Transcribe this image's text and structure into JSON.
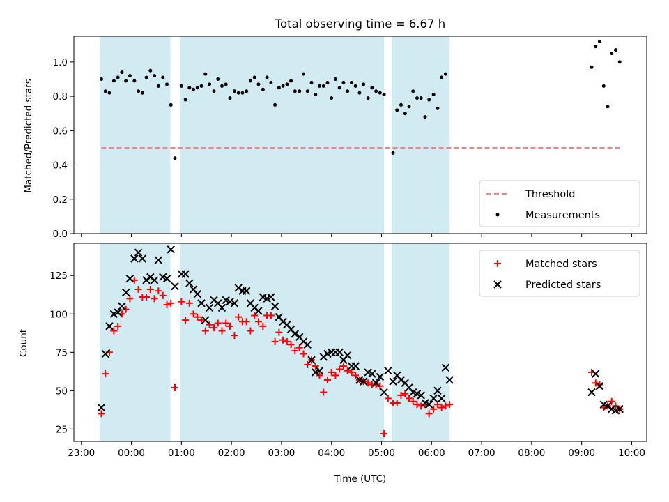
{
  "title": "Total observing time = 6.67 h",
  "chart_data": [
    {
      "type": "scatter",
      "ylabel": "Matched/Predicted stars",
      "ylim": [
        0,
        1.15
      ],
      "yticks": [
        "0.0",
        "0.2",
        "0.4",
        "0.6",
        "0.8",
        "1.0"
      ],
      "yticks_values": [
        0,
        0.2,
        0.4,
        0.6,
        0.8,
        1.0
      ],
      "threshold": {
        "value": 0.5,
        "x_start": 23.4,
        "x_end": 33.8,
        "color": "#ff7f7f"
      },
      "legend": {
        "placement": "bottom-right",
        "entries": [
          "Threshold",
          "Measurements"
        ]
      },
      "series": [
        {
          "name": "Measurements",
          "color": "#000000",
          "x": [
            23.4,
            23.48,
            23.56,
            23.65,
            23.73,
            23.81,
            23.89,
            23.97,
            24.06,
            24.14,
            24.22,
            24.3,
            24.38,
            24.46,
            24.54,
            24.63,
            24.71,
            24.79,
            24.87,
            25.0,
            25.08,
            25.16,
            25.24,
            25.32,
            25.4,
            25.48,
            25.56,
            25.65,
            25.73,
            25.81,
            25.89,
            25.97,
            26.06,
            26.14,
            26.22,
            26.3,
            26.38,
            26.46,
            26.54,
            26.63,
            26.71,
            26.79,
            26.87,
            26.95,
            27.03,
            27.11,
            27.19,
            27.27,
            27.36,
            27.44,
            27.52,
            27.6,
            27.68,
            27.76,
            27.84,
            27.92,
            28.0,
            28.08,
            28.16,
            28.24,
            28.32,
            28.4,
            28.48,
            28.56,
            28.64,
            28.73,
            28.81,
            28.89,
            28.97,
            29.05,
            29.23,
            29.31,
            29.39,
            29.47,
            29.55,
            29.63,
            29.71,
            29.79,
            29.87,
            29.95,
            30.04,
            30.12,
            30.2,
            30.28,
            33.2,
            33.28,
            33.36,
            33.44,
            33.52,
            33.6,
            33.68,
            33.76
          ],
          "y": [
            0.9,
            0.83,
            0.82,
            0.89,
            0.91,
            0.94,
            0.89,
            0.92,
            0.89,
            0.83,
            0.82,
            0.91,
            0.95,
            0.92,
            0.86,
            0.91,
            0.87,
            0.75,
            0.44,
            0.86,
            0.78,
            0.85,
            0.84,
            0.85,
            0.86,
            0.93,
            0.87,
            0.83,
            0.9,
            0.86,
            0.87,
            0.79,
            0.83,
            0.82,
            0.82,
            0.83,
            0.89,
            0.91,
            0.87,
            0.84,
            0.91,
            0.88,
            0.75,
            0.85,
            0.86,
            0.87,
            0.89,
            0.83,
            0.83,
            0.93,
            0.83,
            0.88,
            0.81,
            0.86,
            0.86,
            0.88,
            0.79,
            0.9,
            0.85,
            0.88,
            0.83,
            0.88,
            0.86,
            0.82,
            0.87,
            0.79,
            0.85,
            0.83,
            0.82,
            0.81,
            0.47,
            0.72,
            0.75,
            0.7,
            0.74,
            0.83,
            0.79,
            0.79,
            0.68,
            0.78,
            0.81,
            0.73,
            0.91,
            0.93,
            0.97,
            1.09,
            1.12,
            0.86,
            0.74,
            1.05,
            1.07,
            1.0
          ]
        }
      ]
    },
    {
      "type": "scatter",
      "ylabel": "Count",
      "xlabel": "Time (UTC)",
      "ylim": [
        17,
        146
      ],
      "yticks": [
        "25",
        "50",
        "75",
        "100",
        "125"
      ],
      "yticks_values": [
        25,
        50,
        75,
        100,
        125
      ],
      "legend": {
        "placement": "top-right",
        "entries": [
          "Matched stars",
          "Predicted stars"
        ]
      },
      "series": [
        {
          "name": "Matched stars",
          "marker": "plus",
          "color": "#ff0000",
          "x": [
            23.4,
            23.48,
            23.56,
            23.65,
            23.73,
            23.81,
            23.89,
            23.97,
            24.06,
            24.14,
            24.22,
            24.3,
            24.38,
            24.46,
            24.54,
            24.63,
            24.71,
            24.79,
            24.87,
            25.0,
            25.08,
            25.16,
            25.24,
            25.32,
            25.4,
            25.48,
            25.56,
            25.65,
            25.73,
            25.81,
            25.89,
            25.97,
            26.06,
            26.14,
            26.22,
            26.3,
            26.38,
            26.46,
            26.54,
            26.63,
            26.71,
            26.79,
            26.87,
            26.95,
            27.03,
            27.11,
            27.19,
            27.27,
            27.36,
            27.44,
            27.52,
            27.6,
            27.68,
            27.76,
            27.84,
            27.92,
            28.0,
            28.08,
            28.16,
            28.24,
            28.32,
            28.4,
            28.48,
            28.56,
            28.64,
            28.73,
            28.81,
            28.89,
            28.97,
            29.05,
            29.13,
            29.23,
            29.31,
            29.39,
            29.47,
            29.55,
            29.63,
            29.71,
            29.79,
            29.87,
            29.95,
            30.04,
            30.12,
            30.2,
            30.28,
            30.36,
            33.2,
            33.28,
            33.36,
            33.44,
            33.52,
            33.6,
            33.68,
            33.76
          ],
          "y": [
            35,
            61,
            75,
            89,
            92,
            100,
            103,
            110,
            122,
            116,
            111,
            111,
            116,
            110,
            115,
            112,
            106,
            107,
            52,
            108,
            96,
            107,
            100,
            98,
            96,
            89,
            93,
            91,
            94,
            89,
            94,
            92,
            86,
            98,
            95,
            95,
            89,
            99,
            95,
            92,
            99,
            99,
            82,
            88,
            83,
            82,
            80,
            76,
            78,
            74,
            67,
            70,
            66,
            60,
            49,
            57,
            62,
            60,
            64,
            66,
            63,
            62,
            60,
            57,
            56,
            55,
            54,
            54,
            53,
            22,
            45,
            42,
            42,
            47,
            48,
            45,
            43,
            41,
            40,
            41,
            35,
            38,
            41,
            39,
            40,
            41,
            62,
            55,
            54,
            39,
            40,
            43,
            40,
            38
          ]
        },
        {
          "name": "Predicted stars",
          "marker": "cross",
          "color": "#000000",
          "x": [
            23.4,
            23.48,
            23.56,
            23.65,
            23.73,
            23.81,
            23.89,
            23.97,
            24.06,
            24.14,
            24.22,
            24.3,
            24.38,
            24.46,
            24.54,
            24.63,
            24.71,
            24.79,
            24.87,
            25.0,
            25.08,
            25.16,
            25.24,
            25.32,
            25.4,
            25.48,
            25.56,
            25.65,
            25.73,
            25.81,
            25.89,
            25.97,
            26.06,
            26.14,
            26.22,
            26.3,
            26.38,
            26.46,
            26.54,
            26.63,
            26.71,
            26.79,
            26.87,
            26.95,
            27.03,
            27.11,
            27.19,
            27.27,
            27.36,
            27.44,
            27.52,
            27.6,
            27.68,
            27.76,
            27.84,
            27.92,
            28.0,
            28.08,
            28.16,
            28.24,
            28.32,
            28.4,
            28.48,
            28.56,
            28.64,
            28.73,
            28.81,
            28.89,
            28.97,
            29.05,
            29.13,
            29.23,
            29.31,
            29.39,
            29.47,
            29.55,
            29.63,
            29.71,
            29.79,
            29.87,
            29.95,
            30.04,
            30.12,
            30.2,
            30.28,
            30.36,
            33.2,
            33.28,
            33.36,
            33.44,
            33.52,
            33.6,
            33.68,
            33.76
          ],
          "y": [
            39,
            74,
            92,
            100,
            101,
            105,
            114,
            123,
            136,
            140,
            136,
            122,
            124,
            122,
            135,
            124,
            123,
            142,
            118,
            126,
            126,
            120,
            116,
            113,
            107,
            96,
            104,
            109,
            107,
            104,
            109,
            108,
            107,
            117,
            115,
            115,
            107,
            104,
            102,
            111,
            110,
            111,
            105,
            98,
            95,
            93,
            90,
            87,
            85,
            82,
            80,
            70,
            62,
            63,
            72,
            74,
            75,
            75,
            75,
            70,
            73,
            66,
            66,
            57,
            56,
            62,
            61,
            55,
            59,
            49,
            63,
            56,
            60,
            57,
            55,
            52,
            49,
            48,
            47,
            42,
            41,
            45,
            50,
            45,
            65,
            57,
            49,
            61,
            53,
            41,
            40,
            38,
            37,
            38
          ]
        }
      ]
    }
  ],
  "x_axis": {
    "min": 22.85,
    "max": 34.3,
    "ticks": [
      23,
      24,
      25,
      26,
      27,
      28,
      29,
      30,
      31,
      32,
      33,
      34
    ],
    "tick_labels": [
      "23:00",
      "00:00",
      "01:00",
      "02:00",
      "03:00",
      "04:00",
      "05:00",
      "06:00",
      "07:00",
      "08:00",
      "09:00",
      "10:00"
    ]
  },
  "observing_windows": {
    "color": "#add8e6",
    "spans": [
      [
        23.37,
        24.78
      ],
      [
        24.97,
        29.05
      ],
      [
        29.2,
        30.36
      ]
    ]
  }
}
